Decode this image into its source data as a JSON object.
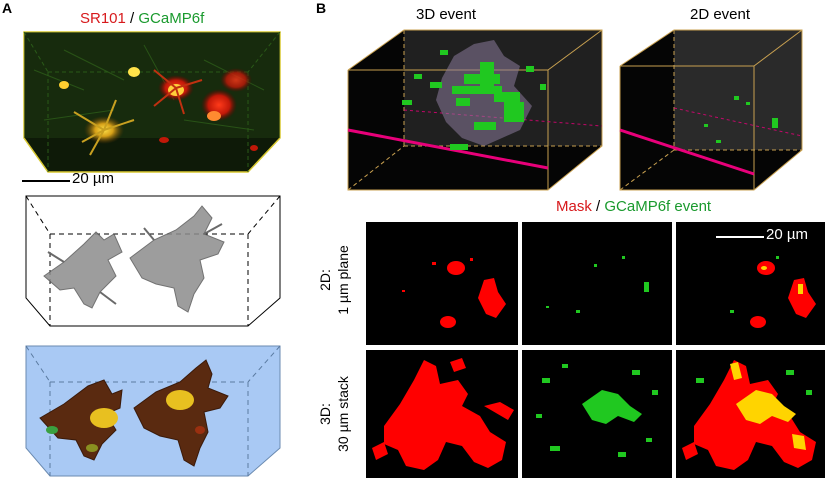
{
  "panels": {
    "a": {
      "letter": "A",
      "label_sr101": "SR101",
      "label_sep": " / ",
      "label_gcamp": "GCaMP6f",
      "scale": "20 µm"
    },
    "b": {
      "letter": "B",
      "event_3d": "3D event",
      "event_2d": "2D event",
      "label_mask": "Mask",
      "label_sep": " / ",
      "label_event": "GCaMP6f event",
      "scale": "20 µm",
      "row_2d": [
        "2D:",
        "1 µm plane"
      ],
      "row_3d": [
        "3D:",
        "30 µm stack"
      ]
    }
  },
  "colors": {
    "mask": "#ff0000",
    "event": "#00c800",
    "overlay": "#ffd400",
    "plane_line": "#e8007a",
    "box_edge": "#c8a050",
    "background_3d": "#a9c9f4"
  }
}
